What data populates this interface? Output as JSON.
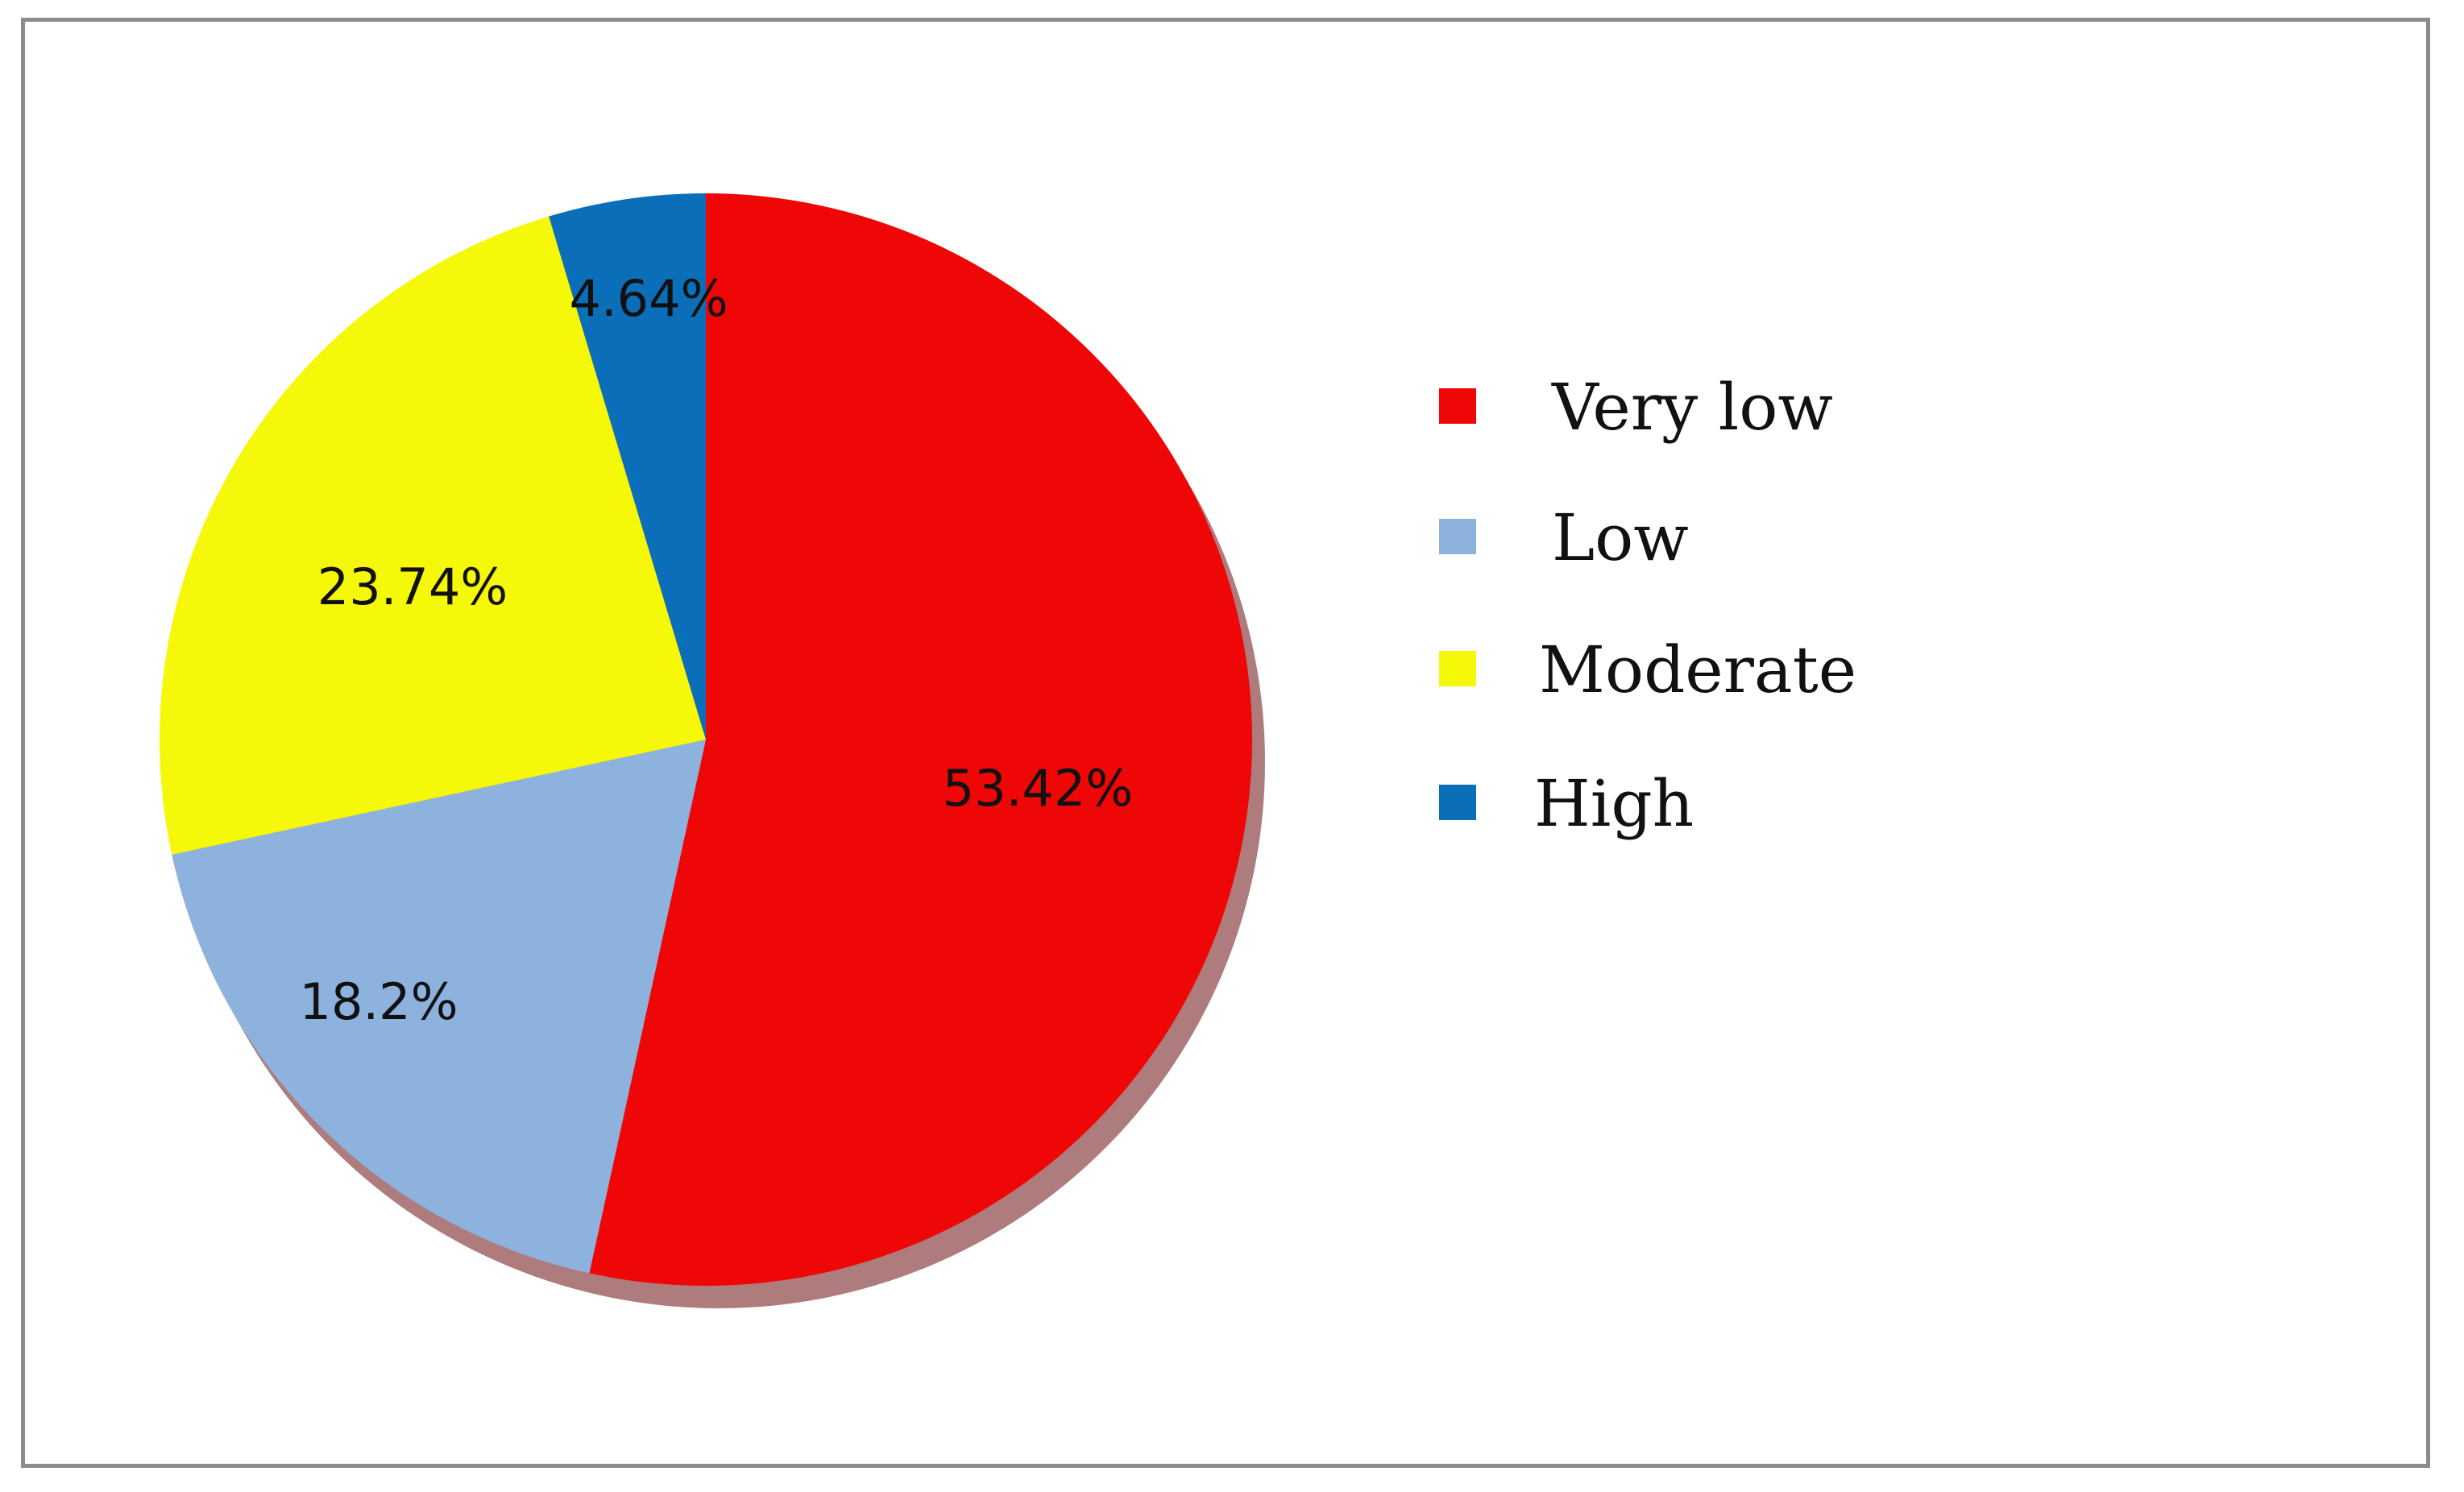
{
  "chart_data": {
    "type": "pie",
    "title": "",
    "slices": [
      {
        "name": "Very low",
        "value": 53.42,
        "label": "53.42%",
        "color": "#ef0606"
      },
      {
        "name": "Low",
        "value": 18.2,
        "label": "18.2%",
        "color": "#8db2de"
      },
      {
        "name": "Moderate",
        "value": 23.74,
        "label": "23.74%",
        "color": "#f6f80a"
      },
      {
        "name": "High",
        "value": 4.64,
        "label": "4.64%",
        "color": "#0b6eb9"
      }
    ],
    "start_angle_deg": 0,
    "direction": "clockwise",
    "legend_position": "right"
  },
  "legend": {
    "items": [
      {
        "label": "Very low",
        "color": "#ef0606"
      },
      {
        "label": "Low",
        "color": "#8db2de"
      },
      {
        "label": "Moderate",
        "color": "#f6f80a"
      },
      {
        "label": "High",
        "color": "#0b6eb9"
      }
    ]
  }
}
